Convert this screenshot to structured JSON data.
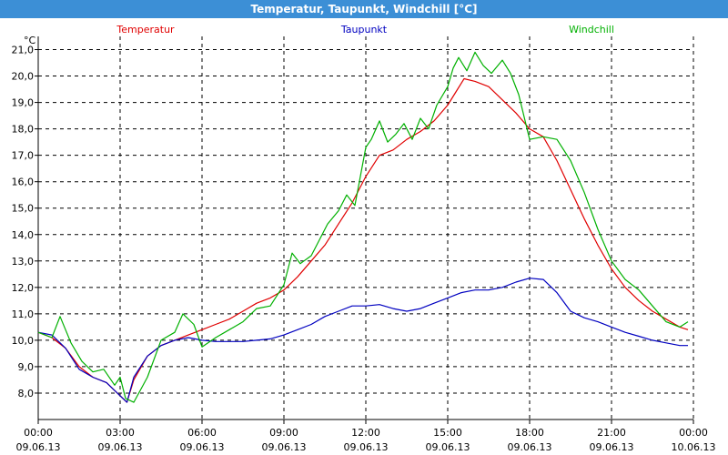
{
  "window": {
    "title": "Temperatur, Taupunkt, Windchill [°C]"
  },
  "colors": {
    "titlebar": "#3c8fd6"
  },
  "chart_data": {
    "type": "line",
    "title": "Temperatur, Taupunkt, Windchill [°C]",
    "ylabel": "°C",
    "ylim": [
      7.0,
      21.5
    ],
    "yticks": [
      8.0,
      9.0,
      10.0,
      11.0,
      12.0,
      13.0,
      14.0,
      15.0,
      16.0,
      17.0,
      18.0,
      19.0,
      20.0,
      21.0
    ],
    "ytick_labels": [
      "8,0",
      "9,0",
      "10,0",
      "11,0",
      "12,0",
      "13,0",
      "14,0",
      "15,0",
      "16,0",
      "17,0",
      "18,0",
      "19,0",
      "20,0",
      "21,0"
    ],
    "xlim": [
      0,
      24
    ],
    "xticks": [
      0,
      3,
      6,
      9,
      12,
      15,
      18,
      21,
      24
    ],
    "xtick_labels": [
      [
        "00:00",
        "09.06.13"
      ],
      [
        "03:00",
        "09.06.13"
      ],
      [
        "06:00",
        "09.06.13"
      ],
      [
        "09:00",
        "09.06.13"
      ],
      [
        "12:00",
        "09.06.13"
      ],
      [
        "15:00",
        "09.06.13"
      ],
      [
        "18:00",
        "09.06.13"
      ],
      [
        "21:00",
        "09.06.13"
      ],
      [
        "00:00",
        "10.06.13"
      ]
    ],
    "grid": true,
    "legend_position": "top",
    "series": [
      {
        "name": "Temperatur",
        "color": "#e00000",
        "x": [
          0,
          0.5,
          1,
          1.5,
          2,
          2.5,
          3,
          3.25,
          3.5,
          4,
          4.5,
          5,
          5.5,
          6,
          6.5,
          7,
          7.5,
          8,
          8.5,
          9,
          9.5,
          10,
          10.5,
          11,
          11.5,
          12,
          12.5,
          13,
          13.5,
          14,
          14.5,
          15,
          15.3,
          15.6,
          16,
          16.5,
          17,
          17.5,
          18,
          18.5,
          19,
          19.5,
          20,
          20.5,
          21,
          21.5,
          22,
          22.5,
          23,
          23.5,
          23.8
        ],
        "values": [
          10.3,
          10.1,
          9.7,
          9.0,
          8.6,
          8.4,
          7.9,
          7.65,
          8.5,
          9.4,
          9.8,
          10.0,
          10.2,
          10.4,
          10.6,
          10.8,
          11.1,
          11.4,
          11.6,
          11.9,
          12.4,
          13.0,
          13.6,
          14.4,
          15.2,
          16.2,
          17.0,
          17.2,
          17.6,
          17.9,
          18.3,
          18.9,
          19.4,
          19.9,
          19.8,
          19.6,
          19.1,
          18.6,
          18.0,
          17.7,
          16.8,
          15.7,
          14.6,
          13.6,
          12.7,
          12.0,
          11.5,
          11.1,
          10.8,
          10.5,
          10.4
        ]
      },
      {
        "name": "Taupunkt",
        "color": "#0000c0",
        "x": [
          0,
          0.5,
          1,
          1.5,
          2,
          2.5,
          3,
          3.25,
          3.5,
          4,
          4.5,
          5,
          5.5,
          6,
          6.5,
          7,
          7.5,
          8,
          8.5,
          9,
          9.5,
          10,
          10.5,
          11,
          11.5,
          12,
          12.5,
          13,
          13.5,
          14,
          14.5,
          15,
          15.5,
          16,
          16.5,
          17,
          17.5,
          18,
          18.5,
          19,
          19.5,
          20,
          20.5,
          21,
          21.5,
          22,
          22.5,
          23,
          23.5,
          23.8
        ],
        "values": [
          10.3,
          10.2,
          9.7,
          8.9,
          8.6,
          8.4,
          7.9,
          7.65,
          8.6,
          9.4,
          9.8,
          10.0,
          10.1,
          10.0,
          9.95,
          9.95,
          9.95,
          10.0,
          10.05,
          10.2,
          10.4,
          10.6,
          10.9,
          11.1,
          11.3,
          11.3,
          11.35,
          11.2,
          11.1,
          11.2,
          11.4,
          11.6,
          11.8,
          11.9,
          11.9,
          12.0,
          12.2,
          12.35,
          12.3,
          11.8,
          11.1,
          10.85,
          10.7,
          10.5,
          10.3,
          10.15,
          10.0,
          9.9,
          9.8,
          9.8
        ]
      },
      {
        "name": "Windchill",
        "color": "#00b000",
        "x": [
          0,
          0.5,
          0.8,
          1.2,
          1.6,
          2,
          2.4,
          2.8,
          3,
          3.2,
          3.5,
          4,
          4.5,
          5,
          5.3,
          5.7,
          6,
          6.5,
          7,
          7.5,
          8,
          8.5,
          9,
          9.3,
          9.6,
          10,
          10.3,
          10.6,
          11,
          11.3,
          11.6,
          12,
          12.2,
          12.5,
          12.8,
          13.1,
          13.4,
          13.7,
          14,
          14.3,
          14.6,
          15,
          15.2,
          15.4,
          15.7,
          16,
          16.3,
          16.6,
          17,
          17.3,
          17.6,
          18,
          18.5,
          19,
          19.5,
          20,
          20.5,
          21,
          21.5,
          22,
          22.5,
          23,
          23.5,
          23.8
        ],
        "values": [
          10.3,
          10.1,
          10.9,
          9.9,
          9.2,
          8.8,
          8.9,
          8.3,
          8.6,
          7.8,
          7.65,
          8.6,
          10.0,
          10.3,
          11.0,
          10.6,
          9.75,
          10.1,
          10.4,
          10.7,
          11.2,
          11.3,
          12.1,
          13.3,
          12.9,
          13.2,
          13.8,
          14.4,
          14.9,
          15.5,
          15.1,
          17.3,
          17.6,
          18.3,
          17.5,
          17.8,
          18.2,
          17.6,
          18.4,
          18.0,
          18.9,
          19.6,
          20.3,
          20.7,
          20.2,
          20.9,
          20.4,
          20.1,
          20.6,
          20.1,
          19.3,
          17.6,
          17.7,
          17.6,
          16.8,
          15.6,
          14.2,
          13.0,
          12.3,
          11.9,
          11.3,
          10.7,
          10.5,
          10.7
        ]
      }
    ]
  }
}
